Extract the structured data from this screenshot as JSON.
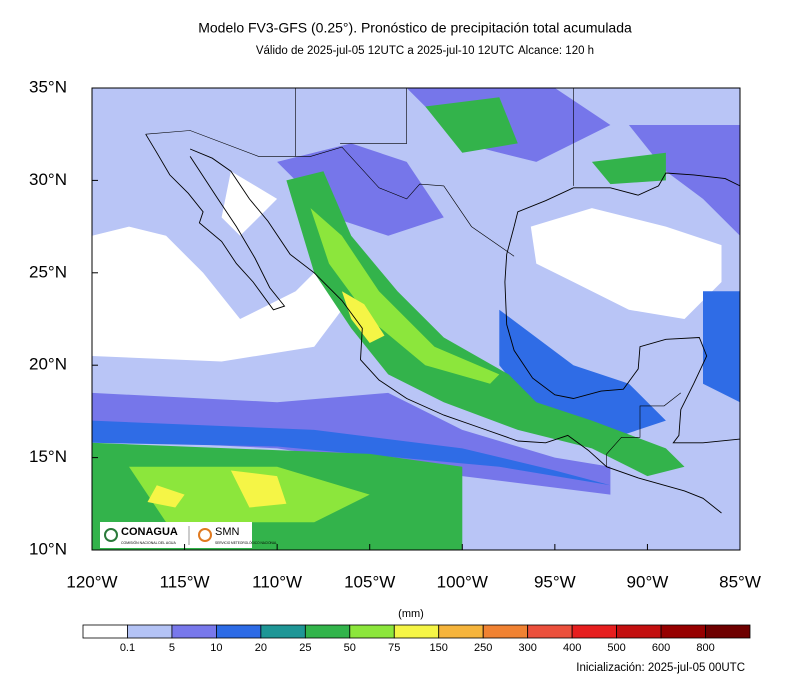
{
  "header": {
    "title": "Modelo FV3-GFS (0.25°). Pronóstico de precipitación total acumulada",
    "subtitle": "Válido de 2025-jul-05 12UTC a 2025-jul-10 12UTC",
    "reach": "Alcance: 120 h"
  },
  "map": {
    "lonlim": [
      -120,
      -85
    ],
    "latlim": [
      10,
      35
    ],
    "lon_ticks": [
      {
        "value": -120,
        "label": "120°W"
      },
      {
        "value": -115,
        "label": "115°W"
      },
      {
        "value": -110,
        "label": "110°W"
      },
      {
        "value": -105,
        "label": "105°W"
      },
      {
        "value": -100,
        "label": "100°W"
      },
      {
        "value": -95,
        "label": "95°W"
      },
      {
        "value": -90,
        "label": "90°W"
      },
      {
        "value": -85,
        "label": "85°W"
      }
    ],
    "lat_ticks": [
      {
        "value": 10,
        "label": "10°N"
      },
      {
        "value": 15,
        "label": "15°N"
      },
      {
        "value": 20,
        "label": "20°N"
      },
      {
        "value": 25,
        "label": "25°N"
      },
      {
        "value": 30,
        "label": "30°N"
      },
      {
        "value": 35,
        "label": "35°N"
      }
    ],
    "logos": {
      "conagua": "CONAGUA",
      "conagua_sub": "COMISIÓN NACIONAL DEL AGUA",
      "smn": "SMN",
      "smn_sub": "SERVICIO METEOROLÓGICO NACIONAL"
    }
  },
  "colorbar": {
    "unit": "(mm)",
    "levels": [
      0.1,
      5,
      10,
      20,
      25,
      50,
      75,
      150,
      250,
      300,
      400,
      500,
      600,
      800
    ],
    "colors": [
      "#ffffff",
      "#b4c3f5",
      "#7878eb",
      "#2d6be6",
      "#1e9696",
      "#32b44b",
      "#8ce63c",
      "#f5f546",
      "#f5b43c",
      "#f08232",
      "#eb503c",
      "#e61e1e",
      "#c30f0f",
      "#960000",
      "#6e0000"
    ]
  },
  "footer": {
    "init": "Inicialización: 2025-jul-05 00UTC"
  }
}
